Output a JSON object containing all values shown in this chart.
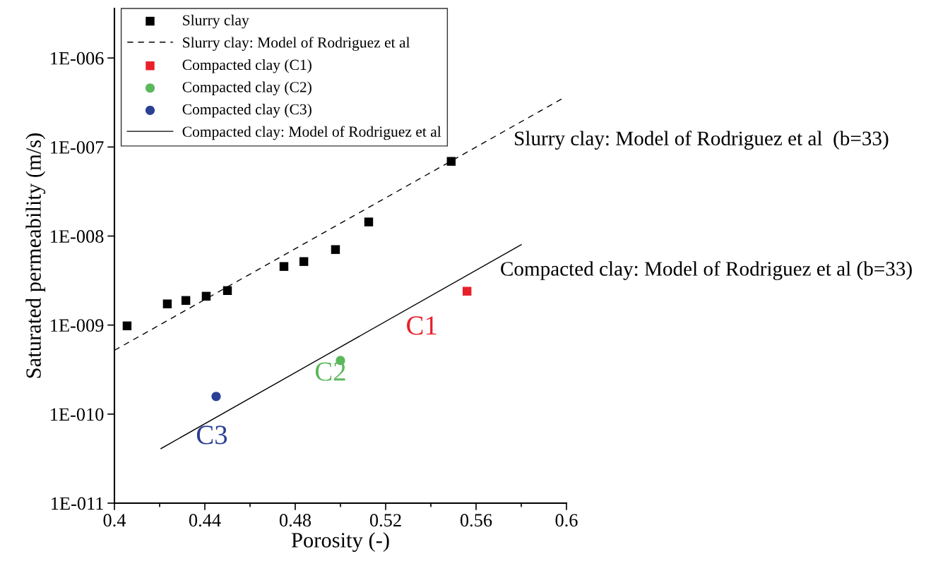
{
  "chart_data": {
    "type": "scatter",
    "xlabel": "Porosity (-)",
    "ylabel": "Saturated permeability (m/s)",
    "log": "y",
    "xlim": [
      0.4,
      0.6
    ],
    "xticks": [
      0.4,
      0.44,
      0.48,
      0.52,
      0.56,
      0.6
    ],
    "ylim": [
      1e-11,
      3.6e-06
    ],
    "yticks": [
      {
        "value": 1e-11,
        "label": "1E-011"
      },
      {
        "value": 1e-10,
        "label": "1E-010"
      },
      {
        "value": 1e-09,
        "label": "1E-009"
      },
      {
        "value": 1e-08,
        "label": "1E-008"
      },
      {
        "value": 1e-07,
        "label": "1E-007"
      },
      {
        "value": 1e-06,
        "label": "1E-006"
      }
    ],
    "grid": false,
    "legend": "top left",
    "series": [
      {
        "name": "Slurry clay",
        "marker": "square",
        "color": "#000000",
        "x": [
          0.4056,
          0.4234,
          0.4316,
          0.4406,
          0.45,
          0.475,
          0.4838,
          0.4978,
          0.5125,
          0.549
        ],
        "values": [
          9.8e-10,
          1.73e-09,
          1.89e-09,
          2.11e-09,
          2.44e-09,
          4.55e-09,
          5.17e-09,
          7.05e-09,
          1.44e-08,
          6.9e-08
        ]
      },
      {
        "name": "Slurry clay: Model of Rodriguez et al",
        "type": "line",
        "line_style": "dashed",
        "color": "#000000",
        "x": [
          0.4,
          0.5978
        ],
        "values": [
          5.2e-10,
          3.46e-07
        ]
      },
      {
        "name": "Compacted clay (C1)",
        "marker": "square",
        "color": "#e8202a",
        "x": [
          0.556
        ],
        "values": [
          2.4e-09
        ]
      },
      {
        "name": "Compacted clay (C2)",
        "marker": "circle",
        "color": "#5cb85c",
        "x": [
          0.5
        ],
        "values": [
          4e-10
        ]
      },
      {
        "name": "Compacted clay (C3)",
        "marker": "circle",
        "color": "#2b3f94",
        "x": [
          0.445
        ],
        "values": [
          1.58e-10
        ]
      },
      {
        "name": "Compacted clay: Model of Rodriguez et al",
        "type": "line",
        "line_style": "solid",
        "color": "#000000",
        "x": [
          0.4206,
          0.58
        ],
        "values": [
          4.1e-11,
          8e-09
        ]
      }
    ],
    "annotations": [
      {
        "text": "Slurry clay: Model of Rodriguez et al  (b=33)",
        "x": 0.5766,
        "y": 1.72e-07
      },
      {
        "text": "Compacted clay: Model of Rodriguez et al (b=33)",
        "x": 0.5706,
        "y": 5.9e-09
      },
      {
        "text": "C1",
        "x": 0.556,
        "y": 2.4e-09
      },
      {
        "text": "C2",
        "x": 0.5,
        "y": 4e-10
      },
      {
        "text": "C3",
        "x": 0.445,
        "y": 1.58e-10
      }
    ]
  }
}
